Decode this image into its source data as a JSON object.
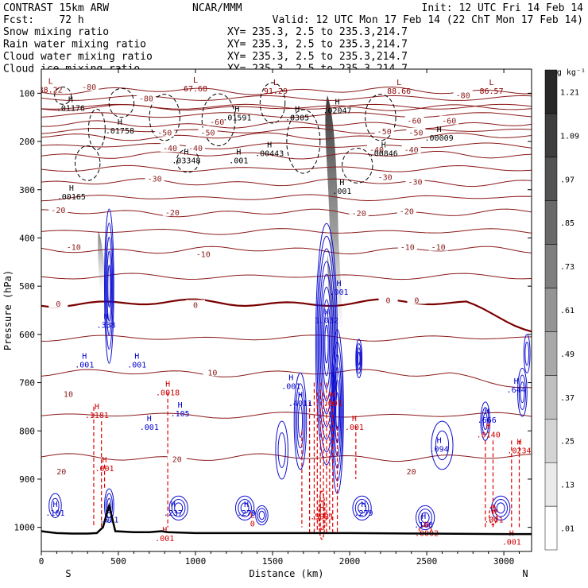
{
  "header": {
    "left_line1": "CONTRAST 15km ARW",
    "center_line1": "NCAR/MMM",
    "right_line1": "Init: 12 UTC Fri 14 Feb 14",
    "fcst_line": "Fcst:    72 h",
    "valid_line": "Valid: 12 UTC Mon 17 Feb 14 (22 ChT Mon 17 Feb 14)",
    "legend": [
      {
        "label": "Snow mixing ratio",
        "xy": "XY= 235.3,  2.5 to 235.3,214.7",
        "color": "#000000"
      },
      {
        "label": "Rain water mixing ratio",
        "xy": "XY= 235.3,  2.5 to 235.3,214.7",
        "color": "#e00000"
      },
      {
        "label": "Cloud water mixing ratio",
        "xy": "XY= 235.3,  2.5 to 235.3,214.7",
        "color": "#0000cc"
      },
      {
        "label": "Cloud ice mixing ratio",
        "xy": "XY= 235.3,  2.5 to 235.3,214.7",
        "color": "#000000"
      }
    ]
  },
  "chart_data": {
    "type": "cross-section",
    "xlabel": "Distance (km)",
    "ylabel": "Pressure (hPa)",
    "xlim": [
      0,
      3180
    ],
    "ylim": [
      1050,
      50
    ],
    "x_ticks": [
      0,
      500,
      1000,
      1500,
      2000,
      2500,
      3000
    ],
    "x_tick_labels": [
      "0",
      "500",
      "1000",
      "1500",
      "2000",
      "2500",
      "3000"
    ],
    "y_ticks": [
      100,
      200,
      300,
      400,
      500,
      600,
      700,
      800,
      900,
      1000
    ],
    "y_tick_labels": [
      "100",
      "200",
      "300",
      "400",
      "500",
      "600",
      "700",
      "800",
      "900",
      "1000"
    ],
    "end_labels": {
      "left": "S",
      "right": "N"
    },
    "colorbar": {
      "unit": "g kg⁻¹",
      "levels": [
        0.01,
        0.13,
        0.25,
        0.37,
        0.49,
        0.61,
        0.73,
        0.85,
        0.97,
        1.09,
        1.21
      ],
      "labels": [
        ".01",
        ".13",
        ".25",
        ".37",
        ".49",
        ".61",
        ".73",
        ".85",
        ".97",
        "1.09",
        "1.21"
      ]
    },
    "temperature_isotherms": [
      {
        "label": "-80",
        "p": 95
      },
      {
        "label": "-60",
        "p": 165
      },
      {
        "label": "-50",
        "p": 190
      },
      {
        "label": "-40",
        "p": 228
      },
      {
        "label": "-30",
        "p": 285
      },
      {
        "label": "-20",
        "p": 348
      },
      {
        "label": "-10",
        "p": 425
      },
      {
        "label": "0",
        "p": 535
      },
      {
        "label": "10",
        "p": 680
      },
      {
        "label": "20",
        "p": 855
      }
    ],
    "isotherm_labels": [
      {
        "text": "-80",
        "x": 310,
        "p": 88
      },
      {
        "text": "-80",
        "x": 680,
        "p": 112
      },
      {
        "text": "-80",
        "x": 2735,
        "p": 105
      },
      {
        "text": "-60",
        "x": 1140,
        "p": 160
      },
      {
        "text": "-60",
        "x": 2420,
        "p": 158
      },
      {
        "text": "-60",
        "x": 2645,
        "p": 158
      },
      {
        "text": "-50",
        "x": 800,
        "p": 183
      },
      {
        "text": "-50",
        "x": 1080,
        "p": 183
      },
      {
        "text": "-50",
        "x": 2225,
        "p": 180
      },
      {
        "text": "-50",
        "x": 2430,
        "p": 183
      },
      {
        "text": "-40",
        "x": 835,
        "p": 215
      },
      {
        "text": "-40",
        "x": 1000,
        "p": 215
      },
      {
        "text": "-40",
        "x": 2175,
        "p": 218
      },
      {
        "text": "-40",
        "x": 2400,
        "p": 218
      },
      {
        "text": "-30",
        "x": 735,
        "p": 278
      },
      {
        "text": "-30",
        "x": 2230,
        "p": 275
      },
      {
        "text": "-30",
        "x": 2425,
        "p": 285
      },
      {
        "text": "-20",
        "x": 110,
        "p": 343
      },
      {
        "text": "-20",
        "x": 850,
        "p": 348
      },
      {
        "text": "-20",
        "x": 2060,
        "p": 350
      },
      {
        "text": "-20",
        "x": 2370,
        "p": 346
      },
      {
        "text": "-10",
        "x": 210,
        "p": 420
      },
      {
        "text": "-10",
        "x": 1050,
        "p": 435
      },
      {
        "text": "-10",
        "x": 2375,
        "p": 420
      },
      {
        "text": "-10",
        "x": 2575,
        "p": 420
      },
      {
        "text": "0",
        "x": 110,
        "p": 538
      },
      {
        "text": "0",
        "x": 1000,
        "p": 540
      },
      {
        "text": "0",
        "x": 2250,
        "p": 530
      },
      {
        "text": "0",
        "x": 2435,
        "p": 530
      },
      {
        "text": "10",
        "x": 1110,
        "p": 680
      },
      {
        "text": "10",
        "x": 175,
        "p": 725
      },
      {
        "text": "20",
        "x": 880,
        "p": 860
      },
      {
        "text": "20",
        "x": 130,
        "p": 885
      },
      {
        "text": "20",
        "x": 2400,
        "p": 885
      }
    ],
    "extrema": [
      {
        "type": "L",
        "value": "88.22",
        "x": 60,
        "p": 90,
        "color": "#8b0000"
      },
      {
        "type": "H",
        "value": ".01176",
        "x": 190,
        "p": 128,
        "color": "#000000"
      },
      {
        "type": "L",
        "value": "67.68",
        "x": 1000,
        "p": 88,
        "color": "#8b0000"
      },
      {
        "type": "L",
        "value": "91.29",
        "x": 1520,
        "p": 93,
        "color": "#8b0000"
      },
      {
        "type": "L",
        "value": "88.66",
        "x": 2320,
        "p": 93,
        "color": "#8b0000"
      },
      {
        "type": "L",
        "value": "86.57",
        "x": 2920,
        "p": 93,
        "color": "#8b0000"
      },
      {
        "type": "H",
        "value": ".01591",
        "x": 1270,
        "p": 148,
        "color": "#000000"
      },
      {
        "type": "H",
        "value": ".0305",
        "x": 1660,
        "p": 148,
        "color": "#000000"
      },
      {
        "type": "H",
        "value": ".02047",
        "x": 1920,
        "p": 133,
        "color": "#000000"
      },
      {
        "type": "H",
        "value": ".01758",
        "x": 510,
        "p": 175,
        "color": "#000000"
      },
      {
        "type": "H",
        "value": ".00009",
        "x": 2580,
        "p": 190,
        "color": "#000000"
      },
      {
        "type": "H",
        "value": ".03348",
        "x": 940,
        "p": 237,
        "color": "#000000"
      },
      {
        "type": "H",
        "value": ".001",
        "x": 1280,
        "p": 237,
        "color": "#000000"
      },
      {
        "type": "H",
        "value": ".00443",
        "x": 1480,
        "p": 222,
        "color": "#000000"
      },
      {
        "type": "H",
        "value": ".00846",
        "x": 2220,
        "p": 222,
        "color": "#000000"
      },
      {
        "type": "H",
        "value": ".001",
        "x": 1950,
        "p": 300,
        "color": "#000000"
      },
      {
        "type": "H",
        "value": ".00165",
        "x": 195,
        "p": 312,
        "color": "#000000"
      },
      {
        "type": "H",
        "value": ".338",
        "x": 420,
        "p": 578,
        "color": "#0000cc"
      },
      {
        "type": "H",
        "value": "1.032",
        "x": 1850,
        "p": 568,
        "color": "#0000cc"
      },
      {
        "type": "H",
        "value": ".001",
        "x": 1930,
        "p": 510,
        "color": "#0000cc"
      },
      {
        "type": "H",
        "value": ".001",
        "x": 280,
        "p": 660,
        "color": "#0000cc"
      },
      {
        "type": "H",
        "value": ".001",
        "x": 620,
        "p": 660,
        "color": "#0000cc"
      },
      {
        "type": "H",
        "value": ".0018",
        "x": 820,
        "p": 718,
        "color": "#cc0000"
      },
      {
        "type": "H",
        "value": ".1181",
        "x": 360,
        "p": 765,
        "color": "#cc0000"
      },
      {
        "type": "H",
        "value": ".105",
        "x": 900,
        "p": 762,
        "color": "#0000cc"
      },
      {
        "type": "H",
        "value": ".001",
        "x": 700,
        "p": 790,
        "color": "#0000cc"
      },
      {
        "type": "H",
        "value": ".001",
        "x": 1620,
        "p": 705,
        "color": "#0000cc"
      },
      {
        "type": "H",
        "value": ".4011",
        "x": 1680,
        "p": 740,
        "color": "#0000cc"
      },
      {
        "type": "H",
        "value": ".001",
        "x": 1890,
        "p": 740,
        "color": "#cc0000"
      },
      {
        "type": "H",
        "value": ".001",
        "x": 2030,
        "p": 790,
        "color": "#cc0000"
      },
      {
        "type": "H",
        "value": ".644",
        "x": 3080,
        "p": 712,
        "color": "#0000cc"
      },
      {
        "type": "H",
        "value": ".666",
        "x": 2890,
        "p": 775,
        "color": "#0000cc"
      },
      {
        "type": "H",
        "value": ".0140",
        "x": 2900,
        "p": 805,
        "color": "#cc0000"
      },
      {
        "type": "H",
        "value": ".094",
        "x": 2580,
        "p": 835,
        "color": "#0000cc"
      },
      {
        "type": "H",
        "value": ".0234",
        "x": 3100,
        "p": 838,
        "color": "#cc0000"
      },
      {
        "type": "H",
        "value": ".101",
        "x": 90,
        "p": 968,
        "color": "#0000cc"
      },
      {
        "type": "H",
        "value": ".237",
        "x": 855,
        "p": 968,
        "color": "#0000cc"
      },
      {
        "type": "H",
        "value": ".279",
        "x": 1330,
        "p": 968,
        "color": "#0000cc"
      },
      {
        "type": "H",
        "value": ".279",
        "x": 2090,
        "p": 968,
        "color": "#0000cc"
      },
      {
        "type": "H",
        "value": ".168",
        "x": 2480,
        "p": 992,
        "color": "#0000cc"
      },
      {
        "type": "H",
        "value": ".0002",
        "x": 2500,
        "p": 1010,
        "color": "#cc0000"
      },
      {
        "type": "H",
        "value": ".001",
        "x": 440,
        "p": 982,
        "color": "#0000cc"
      },
      {
        "type": "H",
        "value": ".001",
        "x": 2935,
        "p": 982,
        "color": "#cc0000"
      },
      {
        "type": "H",
        "value": ".001",
        "x": 3050,
        "p": 1028,
        "color": "#cc0000"
      },
      {
        "type": "H",
        "value": ".001",
        "x": 800,
        "p": 1020,
        "color": "#cc0000"
      },
      {
        "type": "H",
        "value": ".001",
        "x": 410,
        "p": 875,
        "color": "#cc0000"
      },
      {
        "type": "H",
        "value": ".5931",
        "x": 1820,
        "p": 975,
        "color": "#cc0000"
      },
      {
        "type": "L",
        "value": "0",
        "x": 1370,
        "p": 990,
        "color": "#cc0000"
      }
    ],
    "terrain": [
      [
        0,
        1008
      ],
      [
        50,
        1010
      ],
      [
        100,
        1012
      ],
      [
        200,
        1013
      ],
      [
        300,
        1013
      ],
      [
        360,
        1012
      ],
      [
        400,
        1000
      ],
      [
        430,
        965
      ],
      [
        440,
        955
      ],
      [
        455,
        975
      ],
      [
        480,
        1008
      ],
      [
        600,
        1010
      ],
      [
        700,
        1010
      ],
      [
        780,
        1008
      ],
      [
        820,
        1010
      ],
      [
        1000,
        1012
      ],
      [
        1500,
        1012
      ],
      [
        2000,
        1012
      ],
      [
        2500,
        1013
      ],
      [
        3000,
        1014
      ],
      [
        3180,
        1014
      ]
    ]
  }
}
